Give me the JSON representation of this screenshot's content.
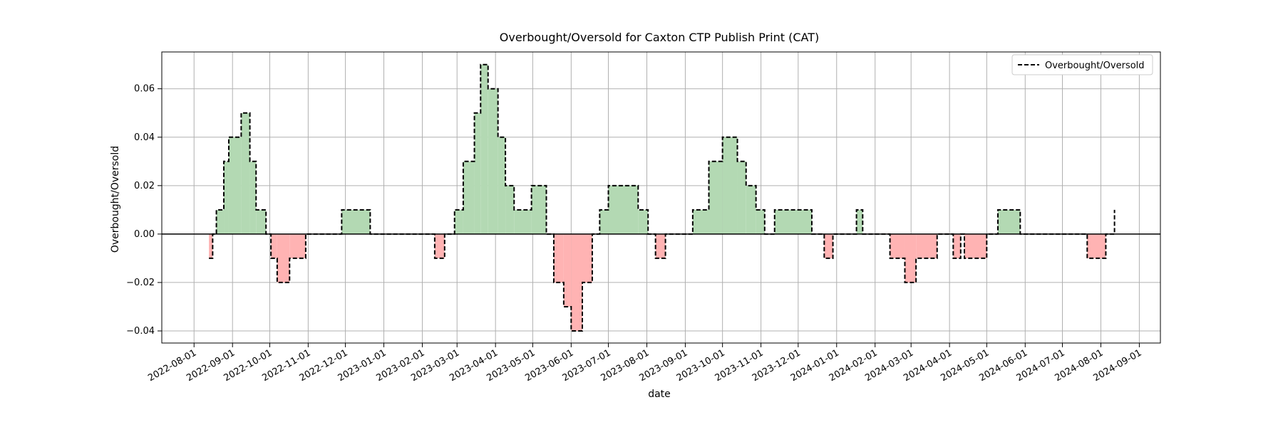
{
  "chart_data": {
    "type": "line",
    "title": "Overbought/Oversold for Caxton CTP Publish Print (CAT)",
    "xlabel": "date",
    "ylabel": "Overbought/Oversold",
    "series": [
      {
        "name": "Overbought/Oversold",
        "points": [
          [
            "2022-08-13",
            -0.01
          ],
          [
            "2022-08-16",
            0.0
          ],
          [
            "2022-08-19",
            0.01
          ],
          [
            "2022-08-25",
            0.03
          ],
          [
            "2022-08-29",
            0.04
          ],
          [
            "2022-09-08",
            0.05
          ],
          [
            "2022-09-15",
            0.03
          ],
          [
            "2022-09-20",
            0.01
          ],
          [
            "2022-09-28",
            0.0
          ],
          [
            "2022-10-02",
            -0.01
          ],
          [
            "2022-10-07",
            -0.02
          ],
          [
            "2022-10-17",
            -0.01
          ],
          [
            "2022-10-30",
            0.0
          ],
          [
            "2022-11-28",
            0.01
          ],
          [
            "2022-12-21",
            0.0
          ],
          [
            "2023-02-11",
            -0.01
          ],
          [
            "2023-02-19",
            0.0
          ],
          [
            "2023-02-27",
            0.01
          ],
          [
            "2023-03-06",
            0.03
          ],
          [
            "2023-03-15",
            0.05
          ],
          [
            "2023-03-20",
            0.07
          ],
          [
            "2023-03-26",
            0.06
          ],
          [
            "2023-04-03",
            0.04
          ],
          [
            "2023-04-09",
            0.02
          ],
          [
            "2023-04-16",
            0.01
          ],
          [
            "2023-04-30",
            0.02
          ],
          [
            "2023-05-12",
            0.0
          ],
          [
            "2023-05-18",
            -0.02
          ],
          [
            "2023-05-26",
            -0.03
          ],
          [
            "2023-06-01",
            -0.04
          ],
          [
            "2023-06-10",
            -0.02
          ],
          [
            "2023-06-18",
            0.0
          ],
          [
            "2023-06-24",
            0.01
          ],
          [
            "2023-07-01",
            0.02
          ],
          [
            "2023-07-25",
            0.01
          ],
          [
            "2023-08-02",
            0.0
          ],
          [
            "2023-08-08",
            -0.01
          ],
          [
            "2023-08-16",
            0.0
          ],
          [
            "2023-09-07",
            0.01
          ],
          [
            "2023-09-20",
            0.03
          ],
          [
            "2023-10-01",
            0.04
          ],
          [
            "2023-10-13",
            0.03
          ],
          [
            "2023-10-20",
            0.02
          ],
          [
            "2023-10-28",
            0.01
          ],
          [
            "2023-11-04",
            0.0
          ],
          [
            "2023-11-12",
            0.01
          ],
          [
            "2023-12-12",
            0.0
          ],
          [
            "2023-12-22",
            -0.01
          ],
          [
            "2023-12-29",
            0.0
          ],
          [
            "2024-01-17",
            0.01
          ],
          [
            "2024-01-22",
            0.0
          ],
          [
            "2024-02-13",
            -0.01
          ],
          [
            "2024-02-25",
            -0.02
          ],
          [
            "2024-03-05",
            -0.01
          ],
          [
            "2024-03-22",
            0.0
          ],
          [
            "2024-04-04",
            -0.01
          ],
          [
            "2024-04-10",
            0.0
          ],
          [
            "2024-04-13",
            -0.01
          ],
          [
            "2024-05-01",
            0.0
          ],
          [
            "2024-05-10",
            0.01
          ],
          [
            "2024-05-28",
            0.0
          ],
          [
            "2024-07-21",
            -0.01
          ],
          [
            "2024-08-05",
            0.0
          ],
          [
            "2024-08-12",
            0.01
          ]
        ]
      }
    ],
    "x_ticks": [
      "2022-08-01",
      "2022-09-01",
      "2022-10-01",
      "2022-11-01",
      "2022-12-01",
      "2023-01-01",
      "2023-02-01",
      "2023-03-01",
      "2023-04-01",
      "2023-05-01",
      "2023-06-01",
      "2023-07-01",
      "2023-08-01",
      "2023-09-01",
      "2023-10-01",
      "2023-11-01",
      "2023-12-01",
      "2024-01-01",
      "2024-02-01",
      "2024-03-01",
      "2024-04-01",
      "2024-05-01",
      "2024-06-01",
      "2024-07-01",
      "2024-08-01",
      "2024-09-01"
    ],
    "y_ticks": [
      -0.04,
      -0.02,
      0.0,
      0.02,
      0.04,
      0.06
    ],
    "y_tick_labels": [
      "−0.04",
      "−0.02",
      "0.00",
      "0.02",
      "0.04",
      "0.06"
    ],
    "xlim": [
      "2022-07-06",
      "2024-09-18"
    ],
    "ylim": [
      -0.045,
      0.0752
    ],
    "grid": true,
    "legend_position": "top-right",
    "fill_positive_color": "#b3d9b3",
    "fill_negative_color": "#ffb3b3",
    "line_color": "#000000",
    "zero_line_color": "#000000"
  }
}
